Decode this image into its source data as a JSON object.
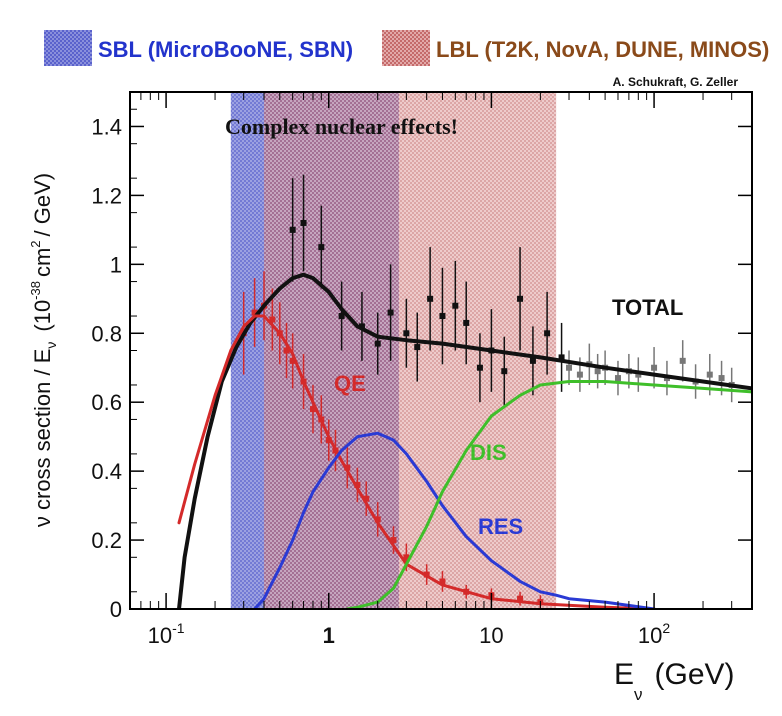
{
  "chart_data": {
    "type": "line",
    "title": "",
    "x_scale": "log",
    "xlim": [
      0.06,
      400
    ],
    "ylim": [
      0,
      1.5
    ],
    "xlabel": {
      "main": "E",
      "sub": "ν",
      "unit": "(GeV)"
    },
    "ylabel": {
      "prefix": "ν cross section / E",
      "sub": "ν",
      "mid": "(10",
      "exp1": "-38",
      "cm": "cm",
      "exp2": "2",
      "suffix": "/ GeV)"
    },
    "x_ticks": [
      {
        "value": 0.1,
        "base": "10",
        "exp": "-1"
      },
      {
        "value": 1,
        "base": "1",
        "exp": ""
      },
      {
        "value": 10,
        "base": "10",
        "exp": ""
      },
      {
        "value": 100,
        "base": "10",
        "exp": "2"
      }
    ],
    "y_ticks": [
      {
        "value": 0,
        "label": "0"
      },
      {
        "value": 0.2,
        "label": "0.2"
      },
      {
        "value": 0.4,
        "label": "0.4"
      },
      {
        "value": 0.6,
        "label": "0.6"
      },
      {
        "value": 0.8,
        "label": "0.8"
      },
      {
        "value": 1.0,
        "label": "1"
      },
      {
        "value": 1.2,
        "label": "1.2"
      },
      {
        "value": 1.4,
        "label": "1.4"
      }
    ],
    "bands": [
      {
        "name": "SBL",
        "label": "SBL (MicroBooNE, SBN)",
        "x_range": [
          0.25,
          2.7
        ],
        "color": "#4a55c8"
      },
      {
        "name": "LBL",
        "label": "LBL (T2K, NovA, DUNE, MINOS)",
        "x_range": [
          0.4,
          25
        ],
        "color": "#b53a3a"
      }
    ],
    "series": [
      {
        "name": "TOTAL",
        "label": "TOTAL",
        "color": "#111111",
        "x": [
          0.12,
          0.13,
          0.15,
          0.18,
          0.22,
          0.27,
          0.33,
          0.4,
          0.5,
          0.6,
          0.7,
          0.8,
          1.0,
          1.2,
          1.5,
          2.0,
          3.0,
          5.0,
          10,
          20,
          50,
          100,
          200,
          400
        ],
        "y": [
          0.0,
          0.15,
          0.32,
          0.5,
          0.66,
          0.76,
          0.83,
          0.88,
          0.93,
          0.96,
          0.97,
          0.96,
          0.92,
          0.87,
          0.82,
          0.79,
          0.78,
          0.77,
          0.75,
          0.73,
          0.7,
          0.68,
          0.66,
          0.64
        ]
      },
      {
        "name": "QE",
        "label": "QE",
        "color": "#d42a2a",
        "x": [
          0.12,
          0.15,
          0.2,
          0.25,
          0.3,
          0.35,
          0.4,
          0.5,
          0.6,
          0.7,
          0.8,
          1.0,
          1.2,
          1.5,
          2.0,
          3.0,
          5.0,
          10,
          20,
          50,
          100
        ],
        "y": [
          0.25,
          0.42,
          0.62,
          0.75,
          0.82,
          0.85,
          0.85,
          0.8,
          0.74,
          0.66,
          0.6,
          0.5,
          0.43,
          0.35,
          0.25,
          0.13,
          0.07,
          0.03,
          0.015,
          0.005,
          0.0
        ]
      },
      {
        "name": "RES",
        "label": "RES",
        "color": "#2a3ad4",
        "x": [
          0.35,
          0.4,
          0.5,
          0.6,
          0.7,
          0.8,
          1.0,
          1.2,
          1.5,
          2.0,
          2.5,
          3.0,
          4.0,
          5.0,
          7.0,
          10,
          15,
          20,
          25,
          30,
          50,
          100
        ],
        "y": [
          0.0,
          0.03,
          0.12,
          0.2,
          0.28,
          0.34,
          0.41,
          0.46,
          0.5,
          0.51,
          0.49,
          0.45,
          0.37,
          0.3,
          0.21,
          0.14,
          0.08,
          0.05,
          0.04,
          0.03,
          0.02,
          0.0
        ]
      },
      {
        "name": "DIS",
        "label": "DIS",
        "color": "#3fbf2a",
        "x": [
          1.3,
          1.5,
          2.0,
          2.5,
          3.0,
          4.0,
          5.0,
          7.0,
          10,
          15,
          20,
          30,
          50,
          100,
          200,
          400
        ],
        "y": [
          0.0,
          0.005,
          0.02,
          0.06,
          0.13,
          0.24,
          0.34,
          0.46,
          0.56,
          0.62,
          0.65,
          0.66,
          0.66,
          0.65,
          0.64,
          0.63
        ]
      }
    ],
    "data_points": [
      {
        "name": "qe-data",
        "color": "#d42a2a",
        "x": [
          0.3,
          0.35,
          0.4,
          0.45,
          0.5,
          0.55,
          0.6,
          0.7,
          0.8,
          0.9,
          1.0,
          1.1,
          1.3,
          1.5,
          1.7,
          2.0,
          2.5,
          3.0,
          4.0,
          5.0,
          7.0,
          10,
          15,
          20
        ],
        "y": [
          0.8,
          0.86,
          0.88,
          0.84,
          0.8,
          0.75,
          0.72,
          0.66,
          0.58,
          0.55,
          0.49,
          0.46,
          0.41,
          0.36,
          0.32,
          0.26,
          0.2,
          0.15,
          0.1,
          0.08,
          0.05,
          0.04,
          0.03,
          0.02
        ],
        "err": [
          0.12,
          0.1,
          0.1,
          0.09,
          0.09,
          0.08,
          0.08,
          0.08,
          0.07,
          0.07,
          0.06,
          0.06,
          0.06,
          0.05,
          0.05,
          0.05,
          0.04,
          0.04,
          0.03,
          0.03,
          0.02,
          0.02,
          0.02,
          0.02
        ]
      },
      {
        "name": "total-data",
        "color": "#111111",
        "x": [
          0.6,
          0.7,
          0.9,
          1.2,
          1.6,
          2.0,
          2.4,
          3.0,
          3.5,
          4.2,
          5.0,
          6.0,
          7.0,
          8.5,
          10,
          12,
          15,
          18,
          22,
          27
        ],
        "y": [
          1.1,
          1.12,
          1.05,
          0.85,
          0.82,
          0.77,
          0.86,
          0.8,
          0.76,
          0.9,
          0.85,
          0.88,
          0.83,
          0.7,
          0.75,
          0.69,
          0.9,
          0.72,
          0.8,
          0.73
        ],
        "err": [
          0.15,
          0.14,
          0.12,
          0.1,
          0.1,
          0.09,
          0.14,
          0.1,
          0.1,
          0.15,
          0.14,
          0.13,
          0.12,
          0.1,
          0.12,
          0.1,
          0.15,
          0.1,
          0.12,
          0.1
        ]
      },
      {
        "name": "highE-data",
        "color": "#777777",
        "x": [
          30,
          35,
          40,
          45,
          50,
          60,
          70,
          80,
          100,
          120,
          150,
          180,
          220,
          260,
          300
        ],
        "y": [
          0.7,
          0.68,
          0.71,
          0.69,
          0.7,
          0.67,
          0.69,
          0.68,
          0.7,
          0.67,
          0.72,
          0.66,
          0.68,
          0.67,
          0.65
        ],
        "err": [
          0.05,
          0.05,
          0.06,
          0.05,
          0.05,
          0.05,
          0.05,
          0.05,
          0.06,
          0.05,
          0.06,
          0.05,
          0.06,
          0.05,
          0.05
        ]
      }
    ],
    "annotations": [
      {
        "name": "nuclear-effects",
        "text": "Complex nuclear effects!"
      },
      {
        "name": "credit",
        "text": "A. Schukraft, G. Zeller"
      }
    ]
  }
}
